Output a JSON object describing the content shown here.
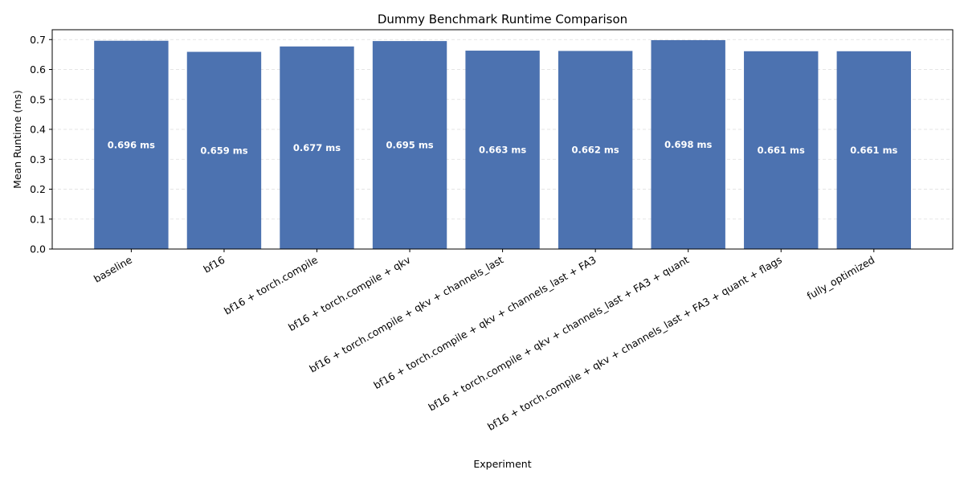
{
  "chart_data": {
    "type": "bar",
    "title": "Dummy Benchmark Runtime Comparison",
    "xlabel": "Experiment",
    "ylabel": "Mean Runtime (ms)",
    "categories": [
      "baseline",
      "bf16",
      "bf16 + torch.compile",
      "bf16 + torch.compile + qkv",
      "bf16 + torch.compile + qkv + channels_last",
      "bf16 + torch.compile + qkv + channels_last + FA3",
      "bf16 + torch.compile + qkv + channels_last + FA3 + quant",
      "bf16 + torch.compile + qkv + channels_last + FA3 + quant + flags",
      "fully_optimized"
    ],
    "values": [
      0.696,
      0.659,
      0.677,
      0.695,
      0.663,
      0.662,
      0.698,
      0.661,
      0.661
    ],
    "value_labels": [
      "0.696 ms",
      "0.659 ms",
      "0.677 ms",
      "0.695 ms",
      "0.663 ms",
      "0.662 ms",
      "0.698 ms",
      "0.661 ms",
      "0.661 ms"
    ],
    "ylim": [
      0,
      0.7329
    ],
    "yticks": [
      0.0,
      0.1,
      0.2,
      0.3,
      0.4,
      0.5,
      0.6,
      0.7
    ],
    "ytick_labels": [
      "0.0",
      "0.1",
      "0.2",
      "0.3",
      "0.4",
      "0.5",
      "0.6",
      "0.7"
    ],
    "grid": "y-dashed",
    "bar_color": "#4c72b0",
    "grid_color": "#dddddd"
  }
}
